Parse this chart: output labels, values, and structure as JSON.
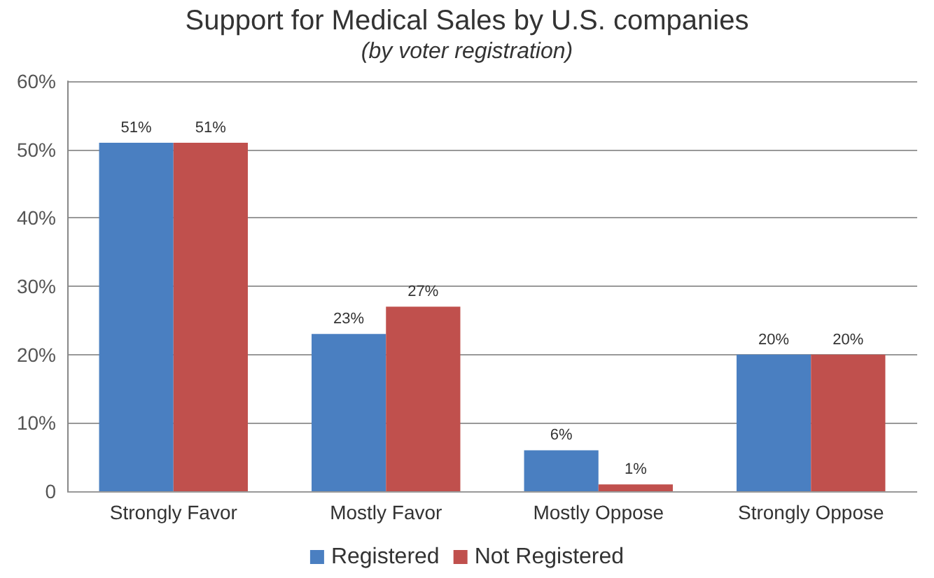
{
  "chart_data": {
    "type": "bar",
    "title": "Support for Medical Sales by U.S. companies",
    "subtitle": "(by voter registration)",
    "categories": [
      "Strongly Favor",
      "Mostly Favor",
      "Mostly Oppose",
      "Strongly Oppose"
    ],
    "series": [
      {
        "name": "Registered",
        "color": "#4a7fc1",
        "values": [
          51,
          23,
          6,
          20
        ],
        "value_labels": [
          "51%",
          "23%",
          "6%",
          "20%"
        ]
      },
      {
        "name": "Not Registered",
        "color": "#c0504d",
        "values": [
          51,
          27,
          1,
          20
        ],
        "value_labels": [
          "51%",
          "27%",
          "1%",
          "20%"
        ]
      }
    ],
    "ylim": [
      0,
      60
    ],
    "yticks": [
      0,
      {
        "value": 10,
        "label": "10%"
      },
      {
        "value": 20,
        "label": "20%"
      },
      {
        "value": 30,
        "label": "30%"
      },
      {
        "value": 40,
        "label": "40%"
      },
      {
        "value": 50,
        "label": "50%"
      },
      {
        "value": 60,
        "label": "60%"
      }
    ],
    "grid": "y",
    "legend": "bottom"
  }
}
